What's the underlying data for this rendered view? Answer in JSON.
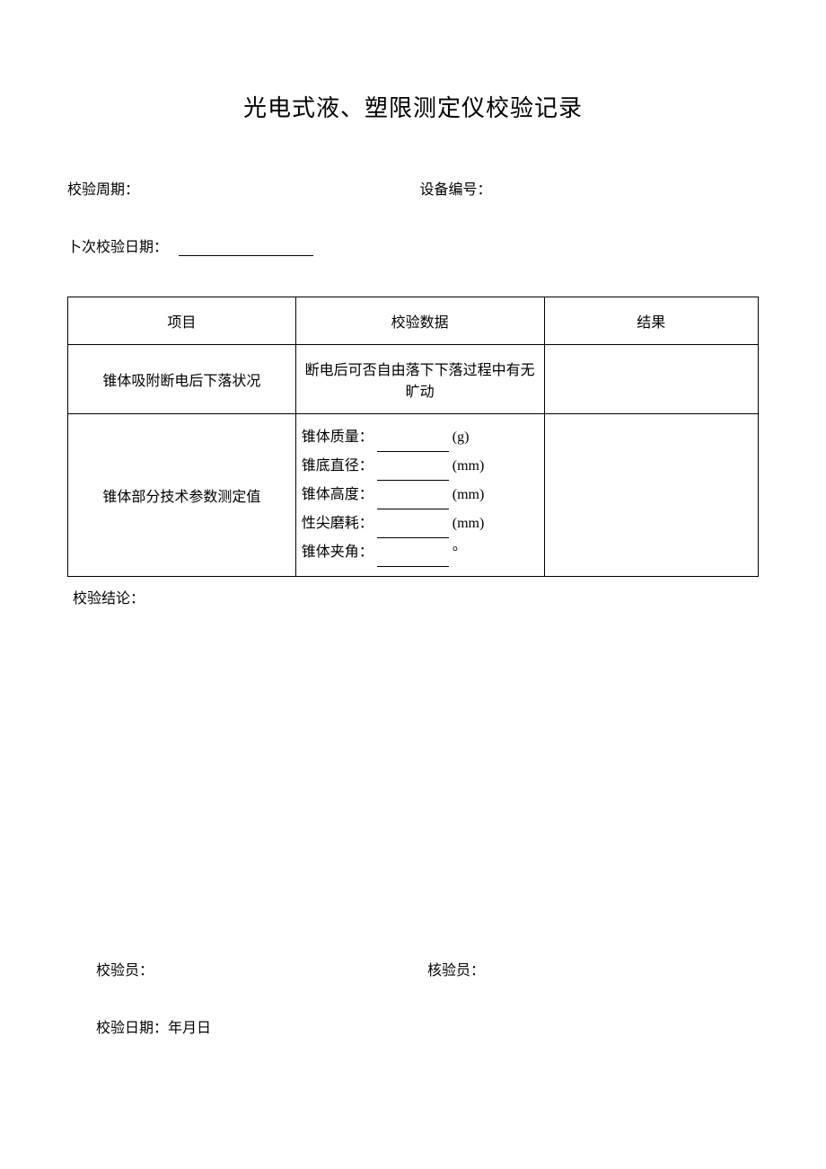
{
  "title": "光电式液、塑限测定仪校验记录",
  "header": {
    "period_label": "校验周期：",
    "device_no_label": "设备编号：",
    "prev_date_label": "卜次校验日期："
  },
  "table": {
    "columns": [
      "项目",
      "校验数据",
      "结果"
    ],
    "rows": [
      {
        "item": "锥体吸附断电后下落状况",
        "data": "断电后可否自由落下下落过程中有无旷动",
        "result": ""
      },
      {
        "item": "锥体部分技术参数测定值",
        "params": [
          {
            "label": "锥体质量：",
            "unit": "(g)"
          },
          {
            "label": "锥底直径：",
            "unit": "(mm)"
          },
          {
            "label": "锥体高度：",
            "unit": "(mm)"
          },
          {
            "label": "性尖磨耗：",
            "unit": "(mm)"
          },
          {
            "label": "锥体夹角：",
            "unit": "°"
          }
        ],
        "result": ""
      }
    ]
  },
  "conclusion_label": "校验结论：",
  "footer": {
    "inspector_label": "校验员：",
    "verifier_label": "核验员：",
    "date_label": "校验日期：年月日"
  }
}
